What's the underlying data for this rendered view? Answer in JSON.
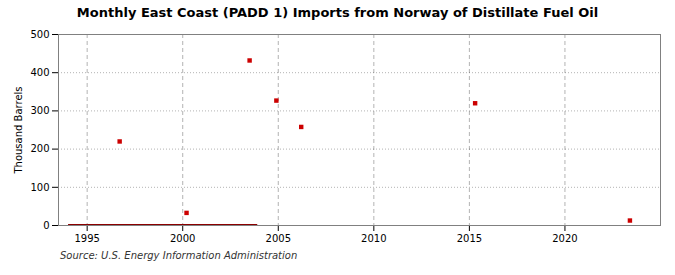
{
  "chart_data": {
    "type": "scatter",
    "title": "Monthly East Coast (PADD 1) Imports from Norway of Distillate Fuel Oil",
    "ylabel": "Thousand Barrels",
    "annotations": [
      "Source: U.S. Energy Information Administration"
    ],
    "xlim": [
      1993.5,
      2025
    ],
    "xticks": [
      1995,
      2000,
      2005,
      2010,
      2015,
      2020
    ],
    "ylim": [
      0,
      500
    ],
    "yticks": [
      0,
      100,
      200,
      300,
      400,
      500
    ],
    "grid": true,
    "series": [
      {
        "type": "scatter",
        "color": "#cc0000",
        "marker": "square",
        "x": [
          1996.7,
          2000.2,
          2003.5,
          2004.9,
          2006.2,
          2015.3,
          2023.4
        ],
        "values": [
          220,
          33,
          432,
          327,
          258,
          320,
          13
        ]
      },
      {
        "type": "line",
        "color": "#8b0000",
        "line_style": "solid",
        "x": [
          1994.0,
          2003.9
        ],
        "values": [
          0,
          0
        ]
      }
    ]
  }
}
